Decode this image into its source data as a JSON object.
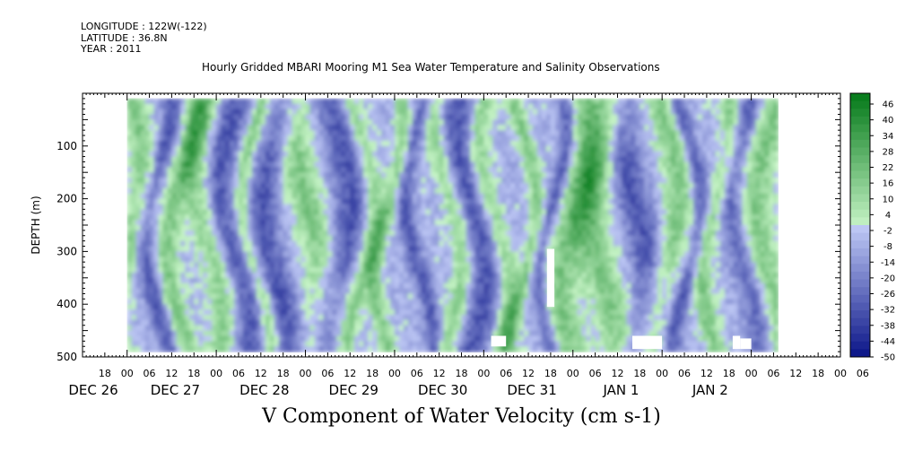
{
  "header": {
    "longitude": "LONGITUDE : 122W(-122)",
    "latitude": "LATITUDE : 36.8N",
    "year": "YEAR : 2011",
    "title": "Hourly Gridded MBARI Mooring M1 Sea Water Temperature and Salinity Observations"
  },
  "chart_data": {
    "type": "heatmap",
    "title": "Hourly Gridded MBARI Mooring M1 Sea Water Temperature and Salinity Observations",
    "xlabel": "V Component of Water Velocity (cm s-1)",
    "ylabel": "DEPTH (m)",
    "ylim": [
      500,
      0
    ],
    "y_ticks": [
      100,
      200,
      300,
      400,
      500
    ],
    "x_hour_ticks": [
      "18",
      "00",
      "06",
      "12",
      "18",
      "00",
      "06",
      "12",
      "18",
      "00",
      "06",
      "12",
      "18",
      "00",
      "06",
      "12",
      "18",
      "00",
      "06",
      "12",
      "18",
      "00",
      "06",
      "12",
      "18",
      "00",
      "06",
      "12",
      "18",
      "00",
      "06",
      "12",
      "18",
      "00",
      "06"
    ],
    "x_day_labels": [
      "DEC 26",
      "DEC 27",
      "DEC 28",
      "DEC 29",
      "DEC 30",
      "DEC 31",
      "JAN  1",
      "JAN  2"
    ],
    "colorbar_labels": [
      "46",
      "40",
      "34",
      "28",
      "22",
      "16",
      "10",
      "4",
      "-2",
      "-8",
      "-14",
      "-20",
      "-26",
      "-32",
      "-38",
      "-44",
      "-50"
    ],
    "colorbar_range": [
      -50,
      52
    ],
    "colorbar_step": 3,
    "data_bands": [
      {
        "x_hour": 0,
        "sign": 1
      },
      {
        "x_hour": 8,
        "sign": -1
      },
      {
        "x_hour": 14,
        "sign": 1
      },
      {
        "x_hour": 22,
        "sign": 1
      },
      {
        "x_hour": 28,
        "sign": -1
      },
      {
        "x_hour": 34,
        "sign": 1
      },
      {
        "x_hour": 40,
        "sign": -1
      },
      {
        "x_hour": 48,
        "sign": 1
      },
      {
        "x_hour": 56,
        "sign": -1
      },
      {
        "x_hour": 62,
        "sign": 1
      },
      {
        "x_hour": 70,
        "sign": 1
      },
      {
        "x_hour": 78,
        "sign": -1
      },
      {
        "x_hour": 86,
        "sign": 1
      },
      {
        "x_hour": 92,
        "sign": -1
      },
      {
        "x_hour": 98,
        "sign": 1
      },
      {
        "x_hour": 106,
        "sign": 1
      },
      {
        "x_hour": 114,
        "sign": -1
      },
      {
        "x_hour": 120,
        "sign": 1
      },
      {
        "x_hour": 128,
        "sign": 1
      },
      {
        "x_hour": 136,
        "sign": -1
      },
      {
        "x_hour": 144,
        "sign": 1
      },
      {
        "x_hour": 150,
        "sign": -1
      },
      {
        "x_hour": 158,
        "sign": 1
      },
      {
        "x_hour": 166,
        "sign": -1
      },
      {
        "x_hour": 172,
        "sign": 1
      }
    ],
    "value_range_shown": [
      -30,
      30
    ],
    "grid": false
  },
  "colors": {
    "frame": "#000000"
  }
}
